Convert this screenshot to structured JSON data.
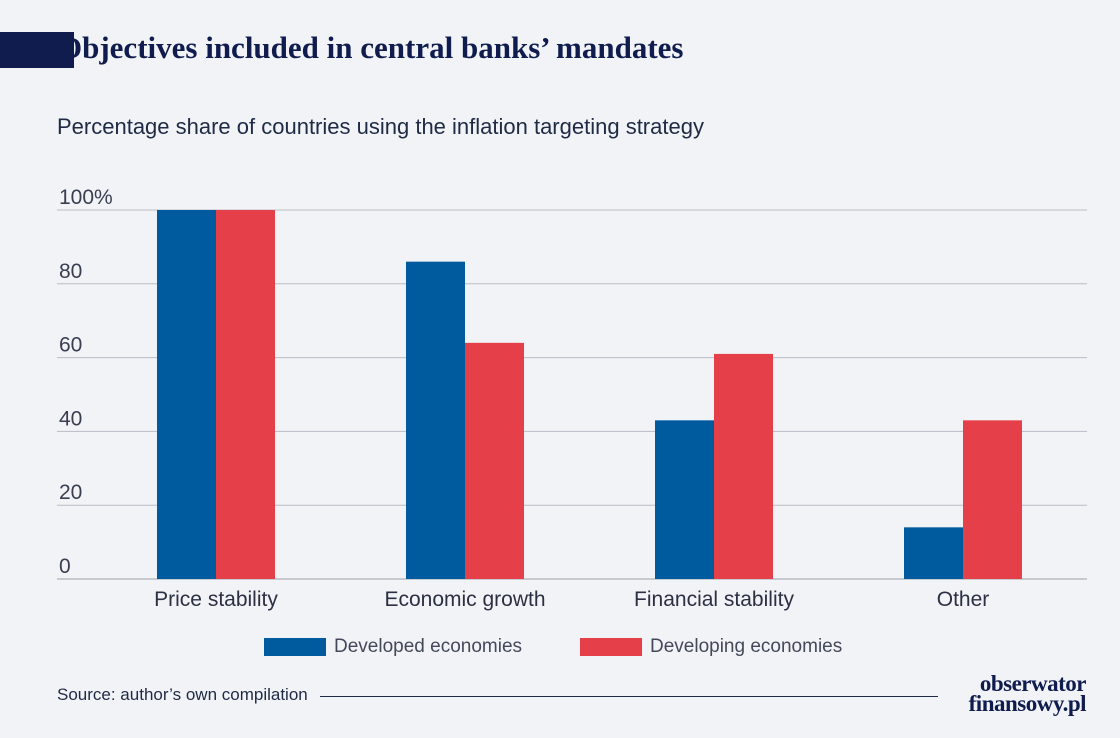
{
  "title": "Objectives included in central banks’ mandates",
  "subtitle": "Percentage share of countries using the inflation targeting strategy",
  "source": "Source: author’s own compilation",
  "logo": {
    "line1": "obserwator",
    "line2": "finansowy.pl"
  },
  "colors": {
    "developed": "#005a9e",
    "developing": "#e5404a",
    "title_accent": "#0f1c4d",
    "gridline": "#b9bcc6"
  },
  "chart_data": {
    "type": "bar",
    "categories": [
      "Price stability",
      "Economic growth",
      "Financial stability",
      "Other"
    ],
    "series": [
      {
        "name": "Developed economies",
        "values": [
          100,
          86,
          43,
          14
        ]
      },
      {
        "name": "Developing economies",
        "values": [
          100,
          64,
          61,
          43
        ]
      }
    ],
    "y_ticks": [
      "0",
      "20",
      "40",
      "60",
      "80",
      "100%"
    ],
    "ylim": [
      0,
      100
    ],
    "grid": true,
    "legend_position": "bottom"
  }
}
